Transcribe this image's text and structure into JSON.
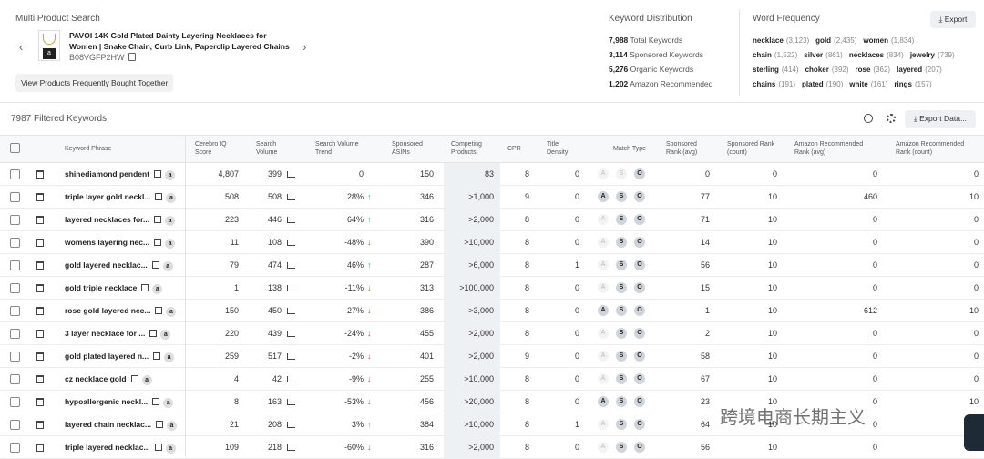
{
  "header": {
    "title": "Multi Product Search",
    "product_title": "PAVOI 14K Gold Plated Dainty Layering Necklaces for Women | Snake Chain, Curb Link, Paperclip Layered Chains",
    "asin": "B08VGFP2HW",
    "fbt_button": "View Products Frequently Bought Together",
    "prev": "‹",
    "next": "›"
  },
  "keyword_distribution": {
    "title": "Keyword Distribution",
    "items": [
      {
        "num": "7,988",
        "label": "Total Keywords"
      },
      {
        "num": "3,114",
        "label": "Sponsored Keywords"
      },
      {
        "num": "5,276",
        "label": "Organic Keywords"
      },
      {
        "num": "1,202",
        "label": "Amazon Recommended"
      }
    ]
  },
  "word_frequency": {
    "title": "Word Frequency",
    "export": "Export",
    "words": [
      {
        "w": "necklace",
        "c": "(3,123)"
      },
      {
        "w": "gold",
        "c": "(2,435)"
      },
      {
        "w": "women",
        "c": "(1,834)"
      },
      {
        "w": "chain",
        "c": "(1,522)"
      },
      {
        "w": "silver",
        "c": "(861)"
      },
      {
        "w": "necklaces",
        "c": "(834)"
      },
      {
        "w": "jewelry",
        "c": "(739)"
      },
      {
        "w": "sterling",
        "c": "(414)"
      },
      {
        "w": "choker",
        "c": "(392)"
      },
      {
        "w": "rose",
        "c": "(362)"
      },
      {
        "w": "layered",
        "c": "(207)"
      },
      {
        "w": "chains",
        "c": "(191)"
      },
      {
        "w": "plated",
        "c": "(190)"
      },
      {
        "w": "white",
        "c": "(161)"
      },
      {
        "w": "rings",
        "c": "(157)"
      }
    ]
  },
  "toolbar": {
    "filtered": "7987 Filtered Keywords",
    "export_data": "Export Data..."
  },
  "columns": {
    "keyword": "Keyword Phrase",
    "cerebro": "Cerebro IQ Score",
    "sv": "Search Volume",
    "svt": "Search Volume Trend",
    "sa": "Sponsored ASINs",
    "cp": "Competing Products",
    "cpr": "CPR",
    "td": "Title Density",
    "mt": "Match Type",
    "sra": "Sponsored Rank (avg)",
    "src": "Sponsored Rank (count)",
    "ara": "Amazon Recommended Rank (avg)",
    "arc": "Amazon Recommended Rank (count)"
  },
  "rows": [
    {
      "kw": "shinediamond pendent",
      "iq": "4,807",
      "sv": "399",
      "trend": "0",
      "dir": "",
      "sa": "150",
      "cp": "83",
      "cpr": "8",
      "td": "0",
      "m": [
        0,
        0,
        1
      ],
      "sra": "0",
      "src": "0",
      "ara": "0",
      "arc": "0"
    },
    {
      "kw": "triple layer gold neckl...",
      "iq": "508",
      "sv": "508",
      "trend": "28%",
      "dir": "up",
      "sa": "346",
      "cp": ">1,000",
      "cpr": "9",
      "td": "0",
      "m": [
        1,
        1,
        1
      ],
      "sra": "77",
      "src": "10",
      "ara": "460",
      "arc": "10"
    },
    {
      "kw": "layered necklaces for...",
      "iq": "223",
      "sv": "446",
      "trend": "64%",
      "dir": "up",
      "sa": "316",
      "cp": ">2,000",
      "cpr": "8",
      "td": "0",
      "m": [
        0,
        1,
        1
      ],
      "sra": "71",
      "src": "10",
      "ara": "0",
      "arc": "0"
    },
    {
      "kw": "womens layering nec...",
      "iq": "11",
      "sv": "108",
      "trend": "-48%",
      "dir": "down",
      "sa": "390",
      "cp": ">10,000",
      "cpr": "8",
      "td": "0",
      "m": [
        0,
        1,
        1
      ],
      "sra": "14",
      "src": "10",
      "ara": "0",
      "arc": "0"
    },
    {
      "kw": "gold layered necklac...",
      "iq": "79",
      "sv": "474",
      "trend": "46%",
      "dir": "up",
      "sa": "287",
      "cp": ">6,000",
      "cpr": "8",
      "td": "1",
      "m": [
        0,
        1,
        1
      ],
      "sra": "56",
      "src": "10",
      "ara": "0",
      "arc": "0"
    },
    {
      "kw": "gold triple necklace",
      "iq": "1",
      "sv": "138",
      "trend": "-11%",
      "dir": "down",
      "sa": "313",
      "cp": ">100,000",
      "cpr": "8",
      "td": "0",
      "m": [
        0,
        1,
        1
      ],
      "sra": "15",
      "src": "10",
      "ara": "0",
      "arc": "0"
    },
    {
      "kw": "rose gold layered nec...",
      "iq": "150",
      "sv": "450",
      "trend": "-27%",
      "dir": "down",
      "sa": "386",
      "cp": ">3,000",
      "cpr": "8",
      "td": "0",
      "m": [
        1,
        1,
        1
      ],
      "sra": "1",
      "src": "10",
      "ara": "612",
      "arc": "10"
    },
    {
      "kw": "3 layer necklace for ...",
      "iq": "220",
      "sv": "439",
      "trend": "-24%",
      "dir": "down",
      "sa": "455",
      "cp": ">2,000",
      "cpr": "8",
      "td": "0",
      "m": [
        0,
        1,
        1
      ],
      "sra": "2",
      "src": "10",
      "ara": "0",
      "arc": "0"
    },
    {
      "kw": "gold plated layered n...",
      "iq": "259",
      "sv": "517",
      "trend": "-2%",
      "dir": "down",
      "sa": "401",
      "cp": ">2,000",
      "cpr": "9",
      "td": "0",
      "m": [
        0,
        1,
        1
      ],
      "sra": "58",
      "src": "10",
      "ara": "0",
      "arc": "0"
    },
    {
      "kw": "cz necklace gold",
      "iq": "4",
      "sv": "42",
      "trend": "-9%",
      "dir": "down",
      "sa": "255",
      "cp": ">10,000",
      "cpr": "8",
      "td": "0",
      "m": [
        0,
        1,
        1
      ],
      "sra": "67",
      "src": "10",
      "ara": "0",
      "arc": "0"
    },
    {
      "kw": "hypoallergenic neckl...",
      "iq": "8",
      "sv": "163",
      "trend": "-53%",
      "dir": "down",
      "sa": "456",
      "cp": ">20,000",
      "cpr": "8",
      "td": "0",
      "m": [
        1,
        1,
        1
      ],
      "sra": "23",
      "src": "10",
      "ara": "0",
      "arc": "10"
    },
    {
      "kw": "layered chain necklac...",
      "iq": "21",
      "sv": "208",
      "trend": "3%",
      "dir": "up",
      "sa": "384",
      "cp": ">10,000",
      "cpr": "8",
      "td": "1",
      "m": [
        0,
        1,
        1
      ],
      "sra": "64",
      "src": "10",
      "ara": "0",
      "arc": "0"
    },
    {
      "kw": "triple layered necklac...",
      "iq": "109",
      "sv": "218",
      "trend": "-60%",
      "dir": "down",
      "sa": "316",
      "cp": ">2,000",
      "cpr": "8",
      "td": "0",
      "m": [
        0,
        1,
        1
      ],
      "sra": "56",
      "src": "10",
      "ara": "0",
      "arc": "0"
    }
  ],
  "match_letters": [
    "A",
    "S",
    "O"
  ],
  "watermark": "跨境电商长期主义"
}
